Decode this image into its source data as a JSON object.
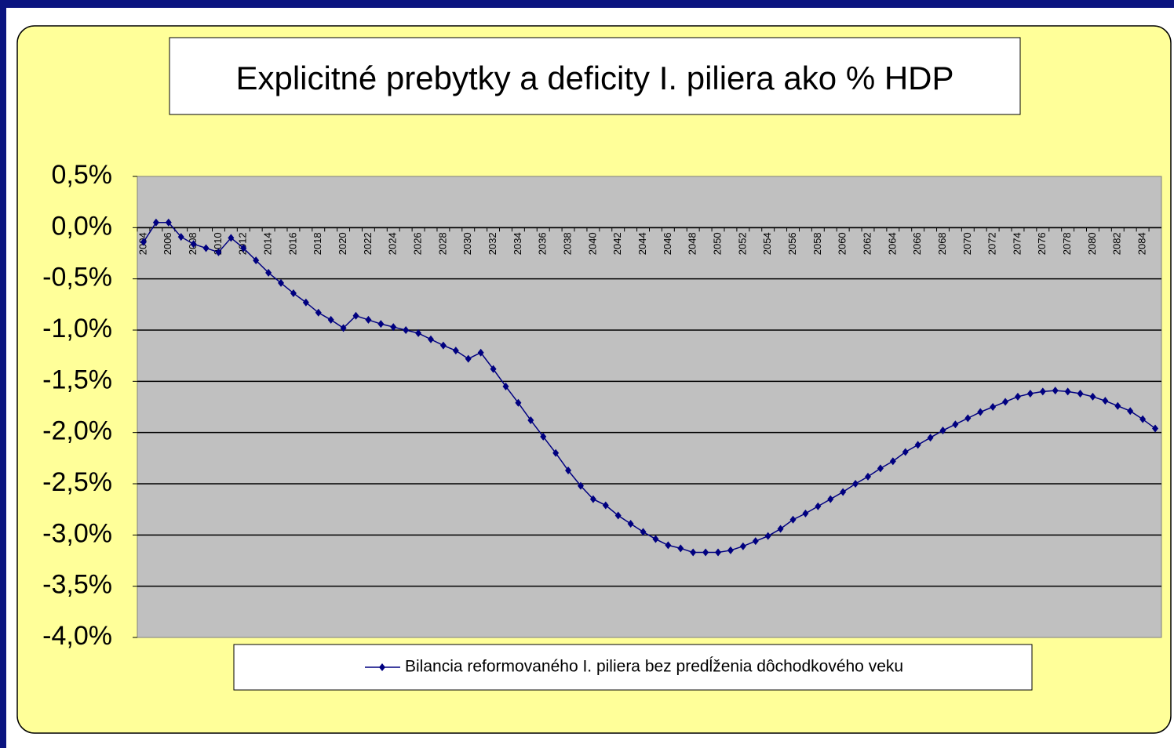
{
  "chart_data": {
    "type": "line",
    "title": "Explicitné prebytky a deficity I. piliera ako % HDP",
    "categories": [
      "2004",
      null,
      "2006",
      null,
      "2008",
      null,
      "2010",
      null,
      "2012",
      null,
      "2014",
      null,
      "2016",
      null,
      "2018",
      null,
      "2020",
      null,
      "2022",
      null,
      "2024",
      null,
      "2026",
      null,
      "2028",
      null,
      "2030",
      null,
      "2032",
      null,
      "2034",
      null,
      "2036",
      null,
      "2038",
      null,
      "2040",
      null,
      "2042",
      null,
      "2044",
      null,
      "2046",
      null,
      "2048",
      null,
      "2050",
      null,
      "2052",
      null,
      "2054",
      null,
      "2056",
      null,
      "2058",
      null,
      "2060",
      null,
      "2062",
      null,
      "2064",
      null,
      "2066",
      null,
      "2068",
      null,
      "2070",
      null,
      "2072",
      null,
      "2074",
      null,
      "2076",
      null,
      "2078",
      null,
      "2080",
      null,
      "2082",
      null,
      "2084",
      null
    ],
    "series": [
      {
        "name": "Bilancia reformovaného I. piliera bez predĺženia dôchodkového veku",
        "color": "#000080",
        "values": [
          -0.14,
          0.05,
          0.05,
          -0.09,
          -0.16,
          -0.2,
          -0.24,
          -0.1,
          -0.2,
          -0.32,
          -0.44,
          -0.54,
          -0.64,
          -0.73,
          -0.83,
          -0.9,
          -0.98,
          -0.86,
          -0.9,
          -0.94,
          -0.97,
          -1.0,
          -1.03,
          -1.09,
          -1.15,
          -1.2,
          -1.28,
          -1.22,
          -1.38,
          -1.55,
          -1.71,
          -1.88,
          -2.04,
          -2.2,
          -2.37,
          -2.52,
          -2.65,
          -2.71,
          -2.81,
          -2.89,
          -2.97,
          -3.04,
          -3.1,
          -3.13,
          -3.17,
          -3.17,
          -3.17,
          -3.15,
          -3.11,
          -3.06,
          -3.01,
          -2.94,
          -2.85,
          -2.79,
          -2.72,
          -2.65,
          -2.58,
          -2.5,
          -2.43,
          -2.35,
          -2.28,
          -2.19,
          -2.12,
          -2.05,
          -1.98,
          -1.92,
          -1.86,
          -1.8,
          -1.75,
          -1.7,
          -1.65,
          -1.62,
          -1.6,
          -1.59,
          -1.6,
          -1.62,
          -1.65,
          -1.69,
          -1.74,
          -1.79,
          -1.87,
          -1.96
        ]
      }
    ],
    "ylim": [
      -4.0,
      0.5
    ],
    "yticks": [
      {
        "value": 0.5,
        "label": "0,5%"
      },
      {
        "value": 0.0,
        "label": "0,0%"
      },
      {
        "value": -0.5,
        "label": "-0,5%"
      },
      {
        "value": -1.0,
        "label": "-1,0%"
      },
      {
        "value": -1.5,
        "label": "-1,5%"
      },
      {
        "value": -2.0,
        "label": "-2,0%"
      },
      {
        "value": -2.5,
        "label": "-2,5%"
      },
      {
        "value": -3.0,
        "label": "-3,0%"
      },
      {
        "value": -3.5,
        "label": "-3,5%"
      },
      {
        "value": -4.0,
        "label": "-4,0%"
      }
    ],
    "grid": true,
    "legend": "bottom"
  }
}
